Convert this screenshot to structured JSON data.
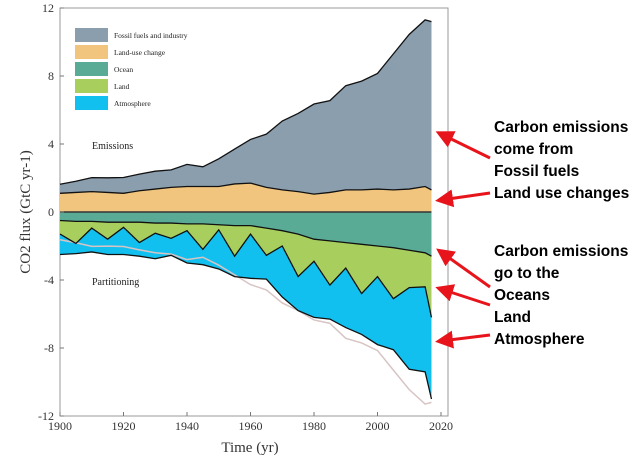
{
  "chart_data": {
    "type": "area",
    "xlabel": "Time (yr)",
    "ylabel": "CO2 flux (GtC yr-1)",
    "xlim": [
      1900,
      2020
    ],
    "ylim": [
      -12,
      12
    ],
    "xticks": [
      1900,
      1920,
      1940,
      1960,
      1980,
      2000,
      2020
    ],
    "yticks": [
      12,
      8,
      4,
      0,
      -4,
      -8,
      -12
    ],
    "grid": false,
    "legend_position": "top-left",
    "annotations": {
      "emissions": "Emissions",
      "partitioning": "Partitioning"
    },
    "x": [
      1900,
      1905,
      1910,
      1915,
      1920,
      1925,
      1930,
      1935,
      1940,
      1945,
      1950,
      1955,
      1960,
      1965,
      1970,
      1975,
      1980,
      1985,
      1990,
      1995,
      2000,
      2005,
      2010,
      2015,
      2017
    ],
    "series": [
      {
        "name": "Fossil fuels and industry",
        "color": "#8a9eae",
        "values": [
          0.53,
          0.66,
          0.82,
          0.86,
          0.93,
          0.98,
          1.05,
          1.03,
          1.3,
          1.16,
          1.63,
          2.05,
          2.57,
          3.13,
          4.05,
          4.6,
          5.3,
          5.4,
          6.13,
          6.4,
          6.8,
          8.0,
          9.1,
          9.8,
          9.9
        ]
      },
      {
        "name": "Land-use change",
        "color": "#f2c57e",
        "values": [
          1.1,
          1.15,
          1.2,
          1.15,
          1.1,
          1.25,
          1.35,
          1.45,
          1.5,
          1.5,
          1.5,
          1.65,
          1.7,
          1.45,
          1.3,
          1.2,
          1.05,
          1.15,
          1.3,
          1.3,
          1.35,
          1.3,
          1.35,
          1.5,
          1.3
        ]
      },
      {
        "name": "Ocean",
        "color": "#5aab96",
        "values": [
          -0.5,
          -0.55,
          -0.55,
          -0.6,
          -0.6,
          -0.6,
          -0.65,
          -0.65,
          -0.7,
          -0.7,
          -0.75,
          -0.8,
          -0.8,
          -0.95,
          -1.1,
          -1.3,
          -1.6,
          -1.7,
          -1.8,
          -1.9,
          -2.0,
          -2.1,
          -2.25,
          -2.4,
          -2.6
        ]
      },
      {
        "name": "Land",
        "color": "#a8cf5e",
        "values": [
          -0.8,
          -1.3,
          -0.4,
          -1.0,
          -0.3,
          -1.2,
          -0.6,
          -0.9,
          -0.4,
          -1.5,
          -0.3,
          -1.8,
          -0.5,
          -1.6,
          -0.9,
          -2.5,
          -1.3,
          -2.6,
          -1.5,
          -2.9,
          -1.8,
          -3.0,
          -2.2,
          -2.0,
          -3.6
        ]
      },
      {
        "name": "Atmosphere",
        "color": "#12c0f0",
        "values": [
          -1.2,
          -0.6,
          -1.4,
          -0.9,
          -1.6,
          -0.8,
          -1.5,
          -1.0,
          -1.9,
          -0.9,
          -2.3,
          -1.2,
          -2.6,
          -1.4,
          -3.0,
          -2.0,
          -3.3,
          -2.0,
          -3.5,
          -2.4,
          -4.0,
          -3.0,
          -4.8,
          -5.0,
          -4.8
        ]
      }
    ],
    "mirror_line_color": "#d8c4c4"
  },
  "callouts": {
    "emissions_text": [
      "Carbon emissions",
      "come from",
      "Fossil fuels",
      "Land use changes"
    ],
    "sinks_text": [
      "Carbon emissions",
      "go to the",
      "Oceans",
      "Land",
      "Atmosphere"
    ],
    "arrow_color": "#e8141c"
  }
}
